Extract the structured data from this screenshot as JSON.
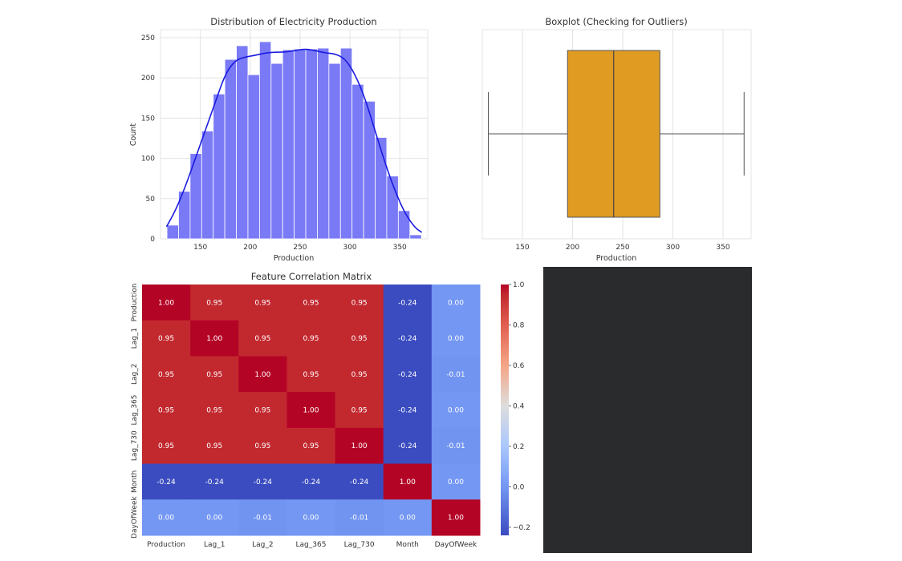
{
  "chart_data": [
    {
      "type": "bar",
      "subtype": "histogram-with-kde",
      "title": "Distribution of Electricity Production",
      "xlabel": "Production",
      "ylabel": "Count",
      "xlim": [
        110,
        378
      ],
      "ylim": [
        0,
        260
      ],
      "xticks": [
        150,
        200,
        250,
        300,
        350
      ],
      "yticks": [
        0,
        50,
        100,
        150,
        200,
        250
      ],
      "bin_start": 116.5,
      "bin_width": 11.6,
      "values": [
        17,
        59,
        106,
        134,
        180,
        223,
        240,
        204,
        245,
        218,
        235,
        236,
        236,
        237,
        218,
        237,
        192,
        171,
        126,
        78,
        35,
        5
      ],
      "kde": {
        "x": [
          116,
          125,
          135,
          145,
          155,
          165,
          175,
          185,
          195,
          205,
          215,
          225,
          235,
          245,
          255,
          265,
          275,
          285,
          295,
          305,
          315,
          325,
          335,
          345,
          355,
          365,
          372
        ],
        "y": [
          15,
          35,
          65,
          100,
          135,
          170,
          205,
          222,
          226,
          228,
          231,
          232,
          232,
          234,
          236,
          234,
          231,
          230,
          224,
          205,
          175,
          135,
          95,
          60,
          32,
          14,
          8
        ]
      },
      "grid": true,
      "bar_color": "#7a7af6",
      "line_color": "#1b1be0"
    },
    {
      "type": "boxplot",
      "title": "Boxplot (Checking for Outliers)",
      "xlabel": "Production",
      "xlim": [
        110,
        378
      ],
      "xticks": [
        150,
        200,
        250,
        300,
        350
      ],
      "whisker_low": 116,
      "q1": 195,
      "median": 241,
      "q3": 287,
      "whisker_high": 371,
      "grid": true,
      "box_color": "#e09b22"
    },
    {
      "type": "heatmap",
      "title": "Feature Correlation Matrix",
      "labels": [
        "Production",
        "Lag_1",
        "Lag_2",
        "Lag_365",
        "Lag_730",
        "Month",
        "DayOfWeek"
      ],
      "matrix": [
        [
          1.0,
          0.95,
          0.95,
          0.95,
          0.95,
          -0.24,
          0.0
        ],
        [
          0.95,
          1.0,
          0.95,
          0.95,
          0.95,
          -0.24,
          0.0
        ],
        [
          0.95,
          0.95,
          1.0,
          0.95,
          0.95,
          -0.24,
          -0.01
        ],
        [
          0.95,
          0.95,
          0.95,
          1.0,
          0.95,
          -0.24,
          0.0
        ],
        [
          0.95,
          0.95,
          0.95,
          0.95,
          1.0,
          -0.24,
          -0.01
        ],
        [
          -0.24,
          -0.24,
          -0.24,
          -0.24,
          -0.24,
          1.0,
          0.0
        ],
        [
          0.0,
          0.0,
          -0.01,
          0.0,
          -0.01,
          0.0,
          1.0
        ]
      ],
      "colormap": "coolwarm",
      "vmin": -0.24,
      "vmax": 1.0,
      "colorbar_ticks": [
        1.0,
        0.8,
        0.6,
        0.4,
        0.2,
        0.0,
        -0.2
      ],
      "colorbar_tick_labels": [
        "1.0",
        "0.8",
        "0.6",
        "0.4",
        "0.2",
        "0.0",
        "−0.2"
      ],
      "annotation_format": "0.00"
    }
  ],
  "empty_panel_color": "#2a2b2d"
}
